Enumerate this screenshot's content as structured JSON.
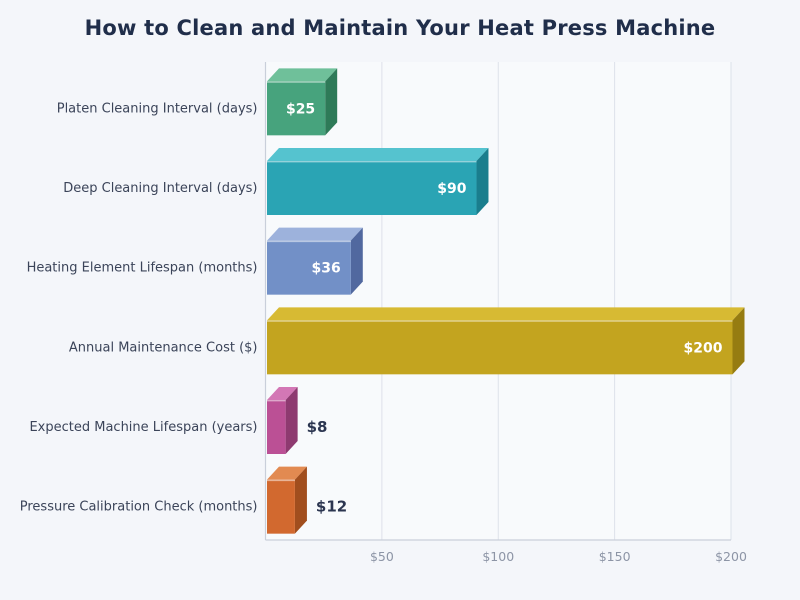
{
  "page": {
    "background": "#f4f6fa"
  },
  "chart_data": {
    "type": "bar",
    "orientation": "horizontal",
    "effect": "3d-cuboid-bars",
    "title": "How to Clean and Maintain Your Heat Press Machine",
    "xlabel": "",
    "ylabel": "",
    "xlim": [
      0,
      200
    ],
    "grid": true,
    "legend": false,
    "categories": [
      "Platen Cleaning Interval (days)",
      "Deep Cleaning Interval (days)",
      "Heating Element Lifespan (months)",
      "Annual Maintenance Cost ($)",
      "Expected Machine Lifespan (years)",
      "Pressure Calibration Check (months)"
    ],
    "values": [
      25,
      90,
      36,
      200,
      8,
      12
    ],
    "x_ticks": [
      {
        "value": 50,
        "label": "$50"
      },
      {
        "value": 100,
        "label": "$100"
      },
      {
        "value": 150,
        "label": "$150"
      },
      {
        "value": 200,
        "label": "$200"
      }
    ],
    "bars": [
      {
        "category": "Platen Cleaning Interval (days)",
        "value": 25,
        "label": "$25",
        "label_position": "inside",
        "color_front": "#47a37d",
        "color_top": "#6fc09a",
        "color_side": "#2e7a58"
      },
      {
        "category": "Deep Cleaning Interval (days)",
        "value": 90,
        "label": "$90",
        "label_position": "inside",
        "color_front": "#2aa4b4",
        "color_top": "#55c3cf",
        "color_side": "#1a7e8d"
      },
      {
        "category": "Heating Element Lifespan (months)",
        "value": 36,
        "label": "$36",
        "label_position": "inside",
        "color_front": "#7290c7",
        "color_top": "#9db2dc",
        "color_side": "#51689f"
      },
      {
        "category": "Annual Maintenance Cost ($)",
        "value": 200,
        "label": "$200",
        "label_position": "inside",
        "color_front": "#c3a41f",
        "color_top": "#d7ba33",
        "color_side": "#967c11"
      },
      {
        "category": "Expected Machine Lifespan (years)",
        "value": 8,
        "label": "$8",
        "label_position": "outside",
        "color_front": "#bb5095",
        "color_top": "#d377b5",
        "color_side": "#8e3a70"
      },
      {
        "category": "Pressure Calibration Check (months)",
        "value": 12,
        "label": "$12",
        "label_position": "outside",
        "color_front": "#d2692f",
        "color_top": "#e28a51",
        "color_side": "#a14e1e"
      }
    ],
    "colors": {
      "background": "#f4f6fa",
      "plot_background": "#f8fafc",
      "gridline": "#dde1ea",
      "axis_line": "#c9cfda",
      "title": "#202e4a",
      "category_label": "#3b4459",
      "tick_label": "#8d95a6",
      "value_label_inside": "#ffffff",
      "value_label_outside": "#2b3550"
    }
  }
}
